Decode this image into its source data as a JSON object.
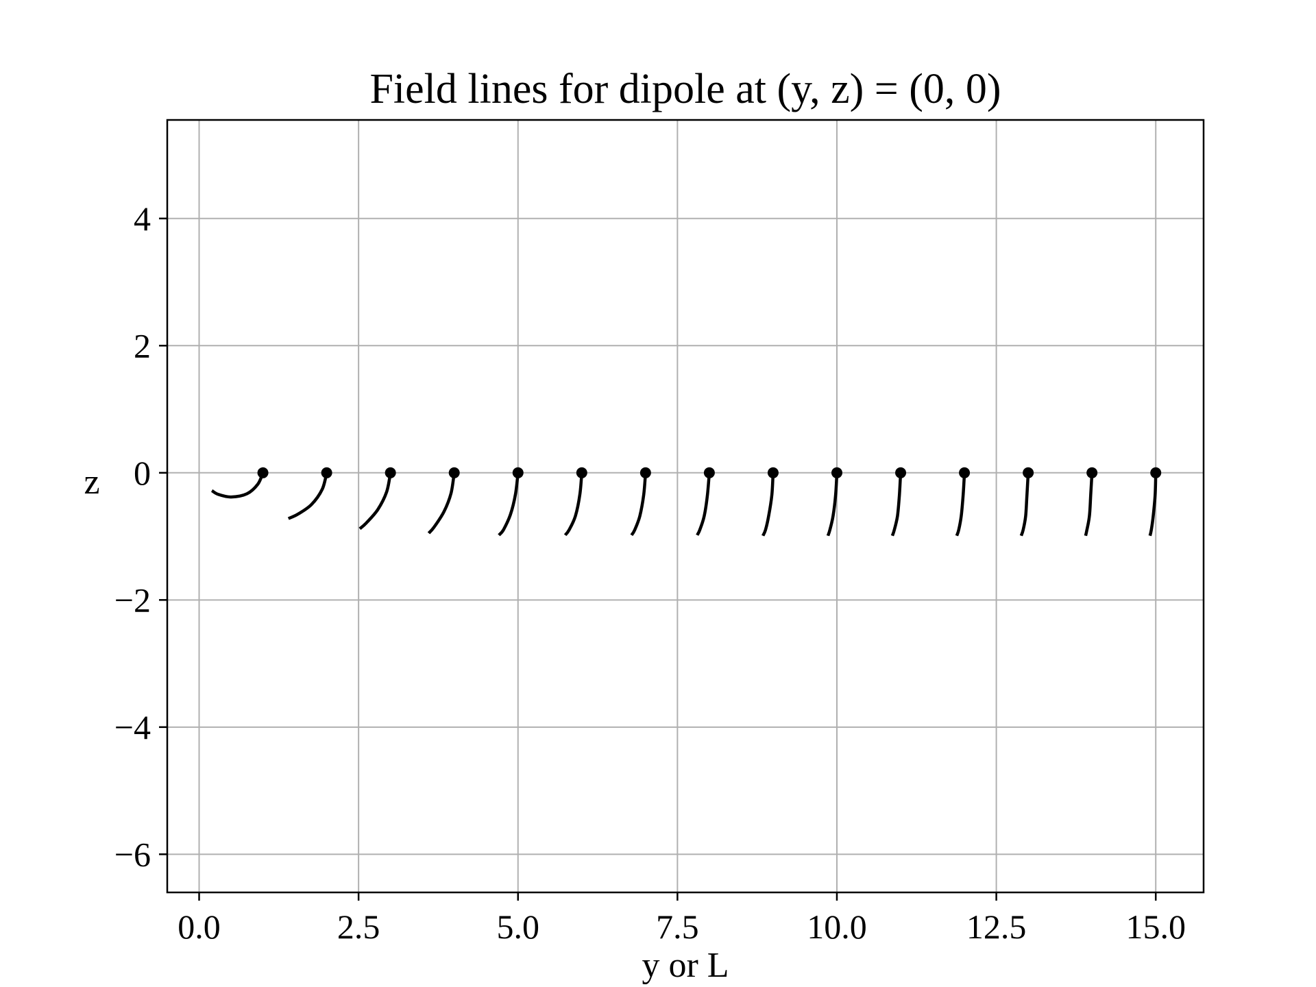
{
  "chart_data": {
    "type": "line",
    "title": "Field lines for dipole at (y, z) = (0, 0)",
    "xlabel": "y or L",
    "ylabel": "z",
    "xlim": [
      -0.5,
      15.75
    ],
    "ylim": [
      -6.6,
      5.55
    ],
    "xticks": [
      0.0,
      2.5,
      5.0,
      7.5,
      10.0,
      12.5,
      15.0
    ],
    "xtick_labels": [
      "0.0",
      "2.5",
      "5.0",
      "7.5",
      "10.0",
      "12.5",
      "15.0"
    ],
    "yticks": [
      -6,
      -4,
      -2,
      0,
      2,
      4
    ],
    "ytick_labels": [
      "−6",
      "−4",
      "−2",
      "0",
      "2",
      "4"
    ],
    "grid": true,
    "line_color": "#000000",
    "grid_color": "#b0b0b0",
    "series": [
      {
        "points": [
          [
            1.0,
            0.0
          ],
          [
            0.92,
            -0.18
          ],
          [
            0.75,
            -0.33
          ],
          [
            0.5,
            -0.38
          ],
          [
            0.3,
            -0.34
          ],
          [
            0.2,
            -0.28
          ]
        ]
      },
      {
        "points": [
          [
            2.0,
            0.0
          ],
          [
            1.93,
            -0.26
          ],
          [
            1.76,
            -0.5
          ],
          [
            1.55,
            -0.65
          ],
          [
            1.4,
            -0.72
          ]
        ]
      },
      {
        "points": [
          [
            3.0,
            0.0
          ],
          [
            2.94,
            -0.3
          ],
          [
            2.8,
            -0.58
          ],
          [
            2.62,
            -0.79
          ],
          [
            2.52,
            -0.88
          ]
        ]
      },
      {
        "points": [
          [
            4.0,
            0.0
          ],
          [
            3.95,
            -0.32
          ],
          [
            3.84,
            -0.61
          ],
          [
            3.68,
            -0.86
          ],
          [
            3.6,
            -0.95
          ]
        ]
      },
      {
        "points": [
          [
            5.0,
            0.0
          ],
          [
            4.96,
            -0.34
          ],
          [
            4.88,
            -0.66
          ],
          [
            4.77,
            -0.9
          ],
          [
            4.7,
            -0.98
          ]
        ]
      },
      {
        "points": [
          [
            6.0,
            0.0
          ],
          [
            5.97,
            -0.34
          ],
          [
            5.9,
            -0.68
          ],
          [
            5.8,
            -0.9
          ],
          [
            5.74,
            -0.98
          ]
        ]
      },
      {
        "points": [
          [
            7.0,
            0.0
          ],
          [
            6.97,
            -0.35
          ],
          [
            6.91,
            -0.68
          ],
          [
            6.83,
            -0.9
          ],
          [
            6.78,
            -0.98
          ]
        ]
      },
      {
        "points": [
          [
            8.0,
            0.0
          ],
          [
            7.97,
            -0.35
          ],
          [
            7.92,
            -0.68
          ],
          [
            7.85,
            -0.9
          ],
          [
            7.81,
            -0.98
          ]
        ]
      },
      {
        "points": [
          [
            9.0,
            0.0
          ],
          [
            8.98,
            -0.35
          ],
          [
            8.93,
            -0.68
          ],
          [
            8.88,
            -0.9
          ],
          [
            8.84,
            -0.99
          ]
        ]
      },
      {
        "points": [
          [
            10.0,
            0.0
          ],
          [
            9.98,
            -0.35
          ],
          [
            9.94,
            -0.68
          ],
          [
            9.89,
            -0.9
          ],
          [
            9.86,
            -0.99
          ]
        ]
      },
      {
        "points": [
          [
            11.0,
            0.0
          ],
          [
            10.98,
            -0.35
          ],
          [
            10.95,
            -0.68
          ],
          [
            10.9,
            -0.9
          ],
          [
            10.87,
            -0.99
          ]
        ]
      },
      {
        "points": [
          [
            12.0,
            0.0
          ],
          [
            11.98,
            -0.35
          ],
          [
            11.95,
            -0.68
          ],
          [
            11.91,
            -0.9
          ],
          [
            11.88,
            -0.99
          ]
        ]
      },
      {
        "points": [
          [
            13.0,
            0.0
          ],
          [
            12.98,
            -0.35
          ],
          [
            12.96,
            -0.68
          ],
          [
            12.92,
            -0.9
          ],
          [
            12.89,
            -0.99
          ]
        ]
      },
      {
        "points": [
          [
            14.0,
            0.0
          ],
          [
            13.98,
            -0.35
          ],
          [
            13.96,
            -0.68
          ],
          [
            13.92,
            -0.9
          ],
          [
            13.9,
            -0.99
          ]
        ]
      },
      {
        "points": [
          [
            15.0,
            0.0
          ],
          [
            14.99,
            -0.35
          ],
          [
            14.96,
            -0.68
          ],
          [
            14.93,
            -0.9
          ],
          [
            14.91,
            -0.99
          ]
        ]
      }
    ],
    "start_points": [
      [
        1,
        0
      ],
      [
        2,
        0
      ],
      [
        3,
        0
      ],
      [
        4,
        0
      ],
      [
        5,
        0
      ],
      [
        6,
        0
      ],
      [
        7,
        0
      ],
      [
        8,
        0
      ],
      [
        9,
        0
      ],
      [
        10,
        0
      ],
      [
        11,
        0
      ],
      [
        12,
        0
      ],
      [
        13,
        0
      ],
      [
        14,
        0
      ],
      [
        15,
        0
      ]
    ]
  }
}
